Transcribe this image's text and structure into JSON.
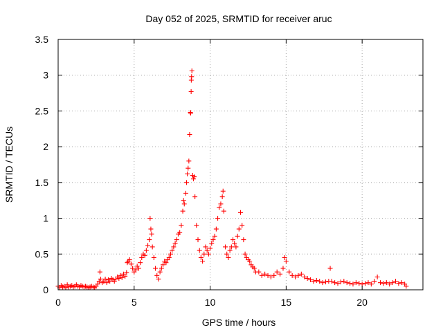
{
  "chart_data": {
    "type": "scatter",
    "title": "Day 052 of 2025, SRMTID for receiver aruc",
    "xlabel": "GPS time / hours",
    "ylabel": "SRMTID / TECUs",
    "xlim": [
      0,
      24
    ],
    "ylim": [
      0,
      3.5
    ],
    "xticks": [
      0,
      5,
      10,
      15,
      20
    ],
    "xtick_labels": [
      "0",
      "5",
      "10",
      "15",
      "20"
    ],
    "yticks": [
      0,
      0.5,
      1,
      1.5,
      2,
      2.5,
      3,
      3.5
    ],
    "ytick_labels": [
      "0",
      "0.5",
      "1",
      "1.5",
      "2",
      "2.5",
      "3",
      "3.5"
    ],
    "grid": true,
    "legend": "none",
    "marker": "plus",
    "marker_color": "#ff0000",
    "series": [
      {
        "name": "SRMTID",
        "points": [
          [
            0.0,
            0.05
          ],
          [
            0.1,
            0.03
          ],
          [
            0.2,
            0.06
          ],
          [
            0.3,
            0.04
          ],
          [
            0.4,
            0.05
          ],
          [
            0.5,
            0.03
          ],
          [
            0.6,
            0.07
          ],
          [
            0.7,
            0.04
          ],
          [
            0.8,
            0.05
          ],
          [
            0.9,
            0.06
          ],
          [
            1.0,
            0.04
          ],
          [
            1.1,
            0.05
          ],
          [
            1.2,
            0.07
          ],
          [
            1.3,
            0.05
          ],
          [
            1.4,
            0.04
          ],
          [
            1.5,
            0.06
          ],
          [
            1.6,
            0.05
          ],
          [
            1.7,
            0.04
          ],
          [
            1.8,
            0.05
          ],
          [
            1.9,
            0.04
          ],
          [
            2.0,
            0.03
          ],
          [
            2.1,
            0.04
          ],
          [
            2.2,
            0.05
          ],
          [
            2.3,
            0.04
          ],
          [
            2.4,
            0.03
          ],
          [
            2.5,
            0.05
          ],
          [
            2.6,
            0.08
          ],
          [
            2.7,
            0.12
          ],
          [
            2.75,
            0.25
          ],
          [
            2.8,
            0.15
          ],
          [
            2.9,
            0.1
          ],
          [
            3.0,
            0.12
          ],
          [
            3.1,
            0.15
          ],
          [
            3.2,
            0.1
          ],
          [
            3.3,
            0.14
          ],
          [
            3.4,
            0.12
          ],
          [
            3.5,
            0.16
          ],
          [
            3.6,
            0.14
          ],
          [
            3.7,
            0.12
          ],
          [
            3.8,
            0.15
          ],
          [
            3.9,
            0.18
          ],
          [
            4.0,
            0.16
          ],
          [
            4.1,
            0.2
          ],
          [
            4.2,
            0.17
          ],
          [
            4.3,
            0.22
          ],
          [
            4.4,
            0.19
          ],
          [
            4.5,
            0.24
          ],
          [
            4.55,
            0.38
          ],
          [
            4.6,
            0.4
          ],
          [
            4.7,
            0.42
          ],
          [
            4.8,
            0.36
          ],
          [
            4.9,
            0.3
          ],
          [
            5.0,
            0.25
          ],
          [
            5.1,
            0.28
          ],
          [
            5.2,
            0.33
          ],
          [
            5.3,
            0.3
          ],
          [
            5.4,
            0.38
          ],
          [
            5.5,
            0.45
          ],
          [
            5.6,
            0.5
          ],
          [
            5.7,
            0.48
          ],
          [
            5.8,
            0.55
          ],
          [
            5.9,
            0.62
          ],
          [
            6.0,
            0.7
          ],
          [
            6.05,
            1.0
          ],
          [
            6.1,
            0.85
          ],
          [
            6.15,
            0.78
          ],
          [
            6.2,
            0.6
          ],
          [
            6.3,
            0.45
          ],
          [
            6.4,
            0.3
          ],
          [
            6.5,
            0.2
          ],
          [
            6.6,
            0.15
          ],
          [
            6.7,
            0.25
          ],
          [
            6.8,
            0.3
          ],
          [
            6.9,
            0.35
          ],
          [
            7.0,
            0.4
          ],
          [
            7.1,
            0.38
          ],
          [
            7.2,
            0.42
          ],
          [
            7.3,
            0.45
          ],
          [
            7.4,
            0.5
          ],
          [
            7.5,
            0.55
          ],
          [
            7.6,
            0.6
          ],
          [
            7.7,
            0.65
          ],
          [
            7.8,
            0.7
          ],
          [
            7.9,
            0.78
          ],
          [
            8.0,
            0.8
          ],
          [
            8.1,
            0.9
          ],
          [
            8.2,
            1.1
          ],
          [
            8.25,
            1.25
          ],
          [
            8.3,
            1.2
          ],
          [
            8.4,
            1.35
          ],
          [
            8.45,
            1.5
          ],
          [
            8.5,
            1.62
          ],
          [
            8.55,
            1.7
          ],
          [
            8.6,
            1.8
          ],
          [
            8.65,
            2.17
          ],
          [
            8.7,
            2.48
          ],
          [
            8.72,
            2.47
          ],
          [
            8.75,
            2.77
          ],
          [
            8.76,
            2.93
          ],
          [
            8.78,
            2.98
          ],
          [
            8.8,
            3.06
          ],
          [
            8.85,
            1.6
          ],
          [
            8.9,
            1.55
          ],
          [
            8.95,
            1.58
          ],
          [
            9.0,
            1.3
          ],
          [
            9.1,
            0.9
          ],
          [
            9.2,
            0.7
          ],
          [
            9.3,
            0.55
          ],
          [
            9.4,
            0.45
          ],
          [
            9.5,
            0.4
          ],
          [
            9.6,
            0.5
          ],
          [
            9.7,
            0.6
          ],
          [
            9.8,
            0.55
          ],
          [
            9.9,
            0.5
          ],
          [
            10.0,
            0.58
          ],
          [
            10.1,
            0.65
          ],
          [
            10.2,
            0.7
          ],
          [
            10.3,
            0.75
          ],
          [
            10.4,
            0.85
          ],
          [
            10.5,
            1.0
          ],
          [
            10.6,
            1.15
          ],
          [
            10.7,
            1.2
          ],
          [
            10.8,
            1.3
          ],
          [
            10.85,
            1.38
          ],
          [
            10.9,
            1.1
          ],
          [
            11.0,
            0.6
          ],
          [
            11.1,
            0.5
          ],
          [
            11.2,
            0.45
          ],
          [
            11.3,
            0.55
          ],
          [
            11.4,
            0.6
          ],
          [
            11.5,
            0.7
          ],
          [
            11.6,
            0.65
          ],
          [
            11.7,
            0.6
          ],
          [
            11.8,
            0.75
          ],
          [
            11.9,
            0.85
          ],
          [
            12.0,
            1.08
          ],
          [
            12.1,
            0.9
          ],
          [
            12.2,
            0.7
          ],
          [
            12.3,
            0.5
          ],
          [
            12.4,
            0.45
          ],
          [
            12.5,
            0.42
          ],
          [
            12.6,
            0.4
          ],
          [
            12.7,
            0.35
          ],
          [
            12.8,
            0.32
          ],
          [
            12.9,
            0.3
          ],
          [
            13.0,
            0.25
          ],
          [
            13.2,
            0.25
          ],
          [
            13.4,
            0.2
          ],
          [
            13.6,
            0.22
          ],
          [
            13.8,
            0.2
          ],
          [
            14.0,
            0.18
          ],
          [
            14.2,
            0.2
          ],
          [
            14.4,
            0.25
          ],
          [
            14.6,
            0.22
          ],
          [
            14.8,
            0.3
          ],
          [
            14.9,
            0.45
          ],
          [
            15.0,
            0.4
          ],
          [
            15.2,
            0.25
          ],
          [
            15.4,
            0.2
          ],
          [
            15.6,
            0.18
          ],
          [
            15.8,
            0.2
          ],
          [
            16.0,
            0.22
          ],
          [
            16.2,
            0.18
          ],
          [
            16.4,
            0.16
          ],
          [
            16.6,
            0.14
          ],
          [
            16.8,
            0.12
          ],
          [
            17.0,
            0.13
          ],
          [
            17.2,
            0.12
          ],
          [
            17.4,
            0.1
          ],
          [
            17.6,
            0.11
          ],
          [
            17.8,
            0.12
          ],
          [
            17.9,
            0.3
          ],
          [
            18.0,
            0.12
          ],
          [
            18.2,
            0.1
          ],
          [
            18.4,
            0.09
          ],
          [
            18.6,
            0.11
          ],
          [
            18.8,
            0.12
          ],
          [
            19.0,
            0.1
          ],
          [
            19.2,
            0.09
          ],
          [
            19.4,
            0.08
          ],
          [
            19.6,
            0.1
          ],
          [
            19.8,
            0.09
          ],
          [
            20.0,
            0.08
          ],
          [
            20.2,
            0.09
          ],
          [
            20.4,
            0.1
          ],
          [
            20.6,
            0.08
          ],
          [
            20.8,
            0.12
          ],
          [
            21.0,
            0.18
          ],
          [
            21.2,
            0.1
          ],
          [
            21.4,
            0.09
          ],
          [
            21.6,
            0.1
          ],
          [
            21.8,
            0.08
          ],
          [
            22.0,
            0.1
          ],
          [
            22.2,
            0.12
          ],
          [
            22.4,
            0.09
          ],
          [
            22.6,
            0.1
          ],
          [
            22.8,
            0.08
          ],
          [
            22.9,
            0.05
          ]
        ]
      }
    ]
  }
}
